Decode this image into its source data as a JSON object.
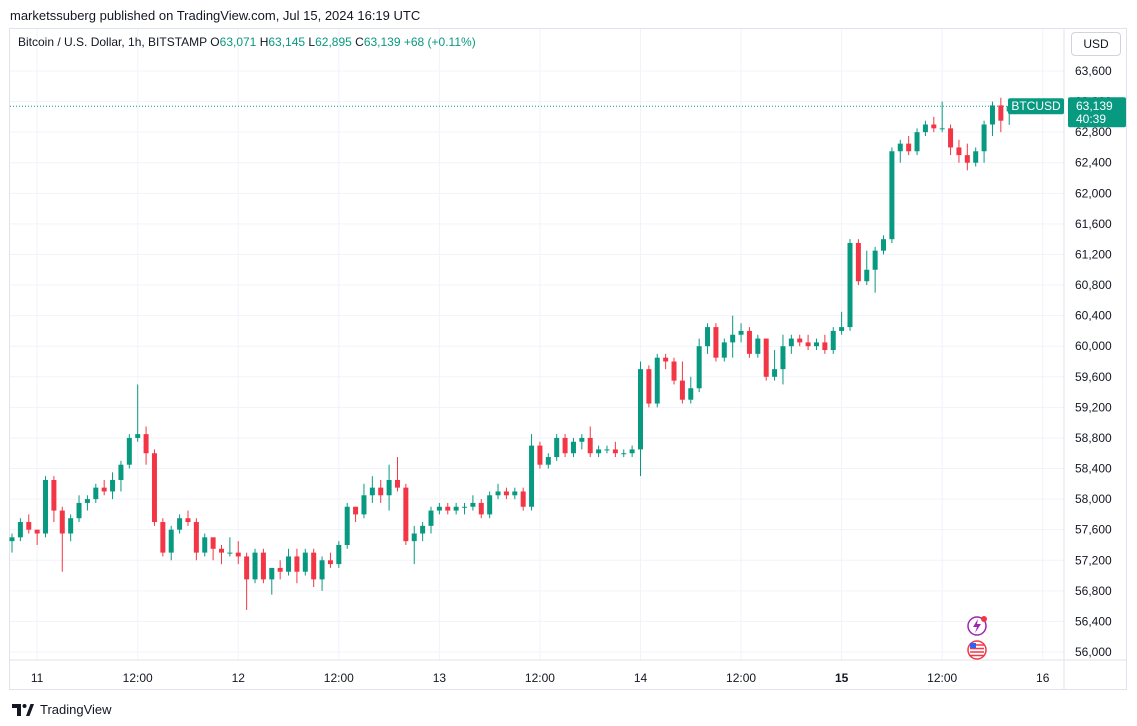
{
  "header": {
    "publisher_line": "marketssuberg published on TradingView.com, Jul 15, 2024 16:19 UTC"
  },
  "legend": {
    "symbol": "Bitcoin / U.S. Dollar, 1h, BITSTAMP",
    "o_label": "O",
    "o_value": "63,071",
    "h_label": "H",
    "h_value": "63,145",
    "l_label": "L",
    "l_value": "62,895",
    "c_label": "C",
    "c_value": "63,139",
    "change": "+68 (+0.11%)"
  },
  "currency_selector": "USD",
  "price_tag": {
    "symbol": "BTCUSD",
    "price": "63,139",
    "countdown": "40:39"
  },
  "footer": {
    "brand": "TradingView"
  },
  "colors": {
    "up": "#089981",
    "down": "#f23645",
    "grid": "#f0f3fa",
    "dotted": "#089981"
  },
  "chart_data": {
    "type": "candlestick",
    "title": "Bitcoin / U.S. Dollar, 1h, BITSTAMP",
    "ylim": [
      55800,
      63850
    ],
    "y_ticks": [
      {
        "value": 56000,
        "label": "56,000"
      },
      {
        "value": 56400,
        "label": "56,400"
      },
      {
        "value": 56800,
        "label": "56,800"
      },
      {
        "value": 57200,
        "label": "57,200"
      },
      {
        "value": 57600,
        "label": "57,600"
      },
      {
        "value": 58000,
        "label": "58,000"
      },
      {
        "value": 58400,
        "label": "58,400"
      },
      {
        "value": 58800,
        "label": "58,800"
      },
      {
        "value": 59200,
        "label": "59,200"
      },
      {
        "value": 59600,
        "label": "59,600"
      },
      {
        "value": 60000,
        "label": "60,000"
      },
      {
        "value": 60400,
        "label": "60,400"
      },
      {
        "value": 60800,
        "label": "60,800"
      },
      {
        "value": 61200,
        "label": "61,200"
      },
      {
        "value": 61600,
        "label": "61,600"
      },
      {
        "value": 62000,
        "label": "62,000"
      },
      {
        "value": 62400,
        "label": "62,400"
      },
      {
        "value": 62800,
        "label": "62,800"
      },
      {
        "value": 63200,
        "label": "63,200"
      },
      {
        "value": 63600,
        "label": "63,600"
      }
    ],
    "x_ticks": [
      {
        "index": 3,
        "label": "11",
        "bold": false
      },
      {
        "index": 15,
        "label": "12:00",
        "bold": false
      },
      {
        "index": 27,
        "label": "12",
        "bold": false
      },
      {
        "index": 39,
        "label": "12:00",
        "bold": false
      },
      {
        "index": 51,
        "label": "13",
        "bold": false
      },
      {
        "index": 63,
        "label": "12:00",
        "bold": false
      },
      {
        "index": 75,
        "label": "14",
        "bold": false
      },
      {
        "index": 87,
        "label": "12:00",
        "bold": false
      },
      {
        "index": 99,
        "label": "15",
        "bold": true
      },
      {
        "index": 111,
        "label": "12:00",
        "bold": false
      },
      {
        "index": 123,
        "label": "16",
        "bold": false
      }
    ],
    "last_price": 63139,
    "candles": [
      {
        "o": 57450,
        "h": 57550,
        "l": 57300,
        "c": 57500
      },
      {
        "o": 57500,
        "h": 57750,
        "l": 57450,
        "c": 57700
      },
      {
        "o": 57700,
        "h": 57800,
        "l": 57550,
        "c": 57600
      },
      {
        "o": 57600,
        "h": 57600,
        "l": 57400,
        "c": 57550
      },
      {
        "o": 57550,
        "h": 58300,
        "l": 57500,
        "c": 58250
      },
      {
        "o": 58250,
        "h": 58300,
        "l": 57700,
        "c": 57850
      },
      {
        "o": 57850,
        "h": 57900,
        "l": 57050,
        "c": 57550
      },
      {
        "o": 57550,
        "h": 57800,
        "l": 57450,
        "c": 57750
      },
      {
        "o": 57750,
        "h": 58050,
        "l": 57700,
        "c": 57950
      },
      {
        "o": 57950,
        "h": 58050,
        "l": 57850,
        "c": 58000
      },
      {
        "o": 58000,
        "h": 58200,
        "l": 57950,
        "c": 58150
      },
      {
        "o": 58150,
        "h": 58250,
        "l": 58050,
        "c": 58100
      },
      {
        "o": 58100,
        "h": 58350,
        "l": 58000,
        "c": 58250
      },
      {
        "o": 58250,
        "h": 58500,
        "l": 58100,
        "c": 58450
      },
      {
        "o": 58450,
        "h": 58850,
        "l": 58400,
        "c": 58800
      },
      {
        "o": 58800,
        "h": 59500,
        "l": 58750,
        "c": 58850
      },
      {
        "o": 58850,
        "h": 58950,
        "l": 58450,
        "c": 58600
      },
      {
        "o": 58600,
        "h": 58650,
        "l": 57650,
        "c": 57700
      },
      {
        "o": 57700,
        "h": 57750,
        "l": 57250,
        "c": 57300
      },
      {
        "o": 57300,
        "h": 57650,
        "l": 57200,
        "c": 57600
      },
      {
        "o": 57600,
        "h": 57800,
        "l": 57550,
        "c": 57750
      },
      {
        "o": 57750,
        "h": 57850,
        "l": 57650,
        "c": 57700
      },
      {
        "o": 57700,
        "h": 57750,
        "l": 57200,
        "c": 57300
      },
      {
        "o": 57300,
        "h": 57550,
        "l": 57250,
        "c": 57500
      },
      {
        "o": 57500,
        "h": 57500,
        "l": 57200,
        "c": 57350
      },
      {
        "o": 57350,
        "h": 57400,
        "l": 57150,
        "c": 57300
      },
      {
        "o": 57300,
        "h": 57500,
        "l": 57250,
        "c": 57300
      },
      {
        "o": 57300,
        "h": 57450,
        "l": 57150,
        "c": 57250
      },
      {
        "o": 57250,
        "h": 57300,
        "l": 56550,
        "c": 56950
      },
      {
        "o": 56950,
        "h": 57350,
        "l": 56900,
        "c": 57300
      },
      {
        "o": 57300,
        "h": 57350,
        "l": 56900,
        "c": 56950
      },
      {
        "o": 56950,
        "h": 57100,
        "l": 56750,
        "c": 57100
      },
      {
        "o": 57100,
        "h": 57200,
        "l": 56950,
        "c": 57050
      },
      {
        "o": 57050,
        "h": 57350,
        "l": 57000,
        "c": 57250
      },
      {
        "o": 57250,
        "h": 57350,
        "l": 56900,
        "c": 57050
      },
      {
        "o": 57050,
        "h": 57350,
        "l": 57000,
        "c": 57300
      },
      {
        "o": 57300,
        "h": 57350,
        "l": 56850,
        "c": 56950
      },
      {
        "o": 56950,
        "h": 57250,
        "l": 56800,
        "c": 57200
      },
      {
        "o": 57200,
        "h": 57300,
        "l": 57100,
        "c": 57150
      },
      {
        "o": 57150,
        "h": 57450,
        "l": 57100,
        "c": 57400
      },
      {
        "o": 57400,
        "h": 57950,
        "l": 57350,
        "c": 57900
      },
      {
        "o": 57900,
        "h": 57900,
        "l": 57700,
        "c": 57800
      },
      {
        "o": 57800,
        "h": 58200,
        "l": 57750,
        "c": 58050
      },
      {
        "o": 58050,
        "h": 58300,
        "l": 57950,
        "c": 58150
      },
      {
        "o": 58150,
        "h": 58250,
        "l": 57950,
        "c": 58050
      },
      {
        "o": 58050,
        "h": 58450,
        "l": 57850,
        "c": 58250
      },
      {
        "o": 58250,
        "h": 58550,
        "l": 58100,
        "c": 58150
      },
      {
        "o": 58150,
        "h": 58200,
        "l": 57400,
        "c": 57450
      },
      {
        "o": 57450,
        "h": 57650,
        "l": 57150,
        "c": 57550
      },
      {
        "o": 57550,
        "h": 57700,
        "l": 57450,
        "c": 57650
      },
      {
        "o": 57650,
        "h": 57900,
        "l": 57550,
        "c": 57850
      },
      {
        "o": 57850,
        "h": 57950,
        "l": 57800,
        "c": 57900
      },
      {
        "o": 57900,
        "h": 57950,
        "l": 57800,
        "c": 57850
      },
      {
        "o": 57850,
        "h": 57950,
        "l": 57800,
        "c": 57900
      },
      {
        "o": 57900,
        "h": 57950,
        "l": 57800,
        "c": 57900
      },
      {
        "o": 57900,
        "h": 58050,
        "l": 57850,
        "c": 57950
      },
      {
        "o": 57950,
        "h": 58000,
        "l": 57750,
        "c": 57800
      },
      {
        "o": 57800,
        "h": 58100,
        "l": 57750,
        "c": 58050
      },
      {
        "o": 58050,
        "h": 58200,
        "l": 58000,
        "c": 58100
      },
      {
        "o": 58100,
        "h": 58150,
        "l": 58000,
        "c": 58050
      },
      {
        "o": 58050,
        "h": 58150,
        "l": 58000,
        "c": 58100
      },
      {
        "o": 58100,
        "h": 58150,
        "l": 57850,
        "c": 57900
      },
      {
        "o": 57900,
        "h": 58850,
        "l": 57850,
        "c": 58700
      },
      {
        "o": 58700,
        "h": 58750,
        "l": 58400,
        "c": 58450
      },
      {
        "o": 58450,
        "h": 58600,
        "l": 58400,
        "c": 58550
      },
      {
        "o": 58550,
        "h": 58850,
        "l": 58500,
        "c": 58800
      },
      {
        "o": 58800,
        "h": 58850,
        "l": 58550,
        "c": 58600
      },
      {
        "o": 58600,
        "h": 58800,
        "l": 58550,
        "c": 58750
      },
      {
        "o": 58750,
        "h": 58850,
        "l": 58650,
        "c": 58800
      },
      {
        "o": 58800,
        "h": 58950,
        "l": 58550,
        "c": 58600
      },
      {
        "o": 58600,
        "h": 58700,
        "l": 58550,
        "c": 58650
      },
      {
        "o": 58650,
        "h": 58700,
        "l": 58600,
        "c": 58650
      },
      {
        "o": 58650,
        "h": 58750,
        "l": 58550,
        "c": 58600
      },
      {
        "o": 58600,
        "h": 58650,
        "l": 58550,
        "c": 58600
      },
      {
        "o": 58600,
        "h": 58700,
        "l": 58550,
        "c": 58650
      },
      {
        "o": 58650,
        "h": 59800,
        "l": 58300,
        "c": 59700
      },
      {
        "o": 59700,
        "h": 59750,
        "l": 59200,
        "c": 59250
      },
      {
        "o": 59250,
        "h": 59900,
        "l": 59200,
        "c": 59850
      },
      {
        "o": 59850,
        "h": 59900,
        "l": 59700,
        "c": 59800
      },
      {
        "o": 59800,
        "h": 59850,
        "l": 59500,
        "c": 59550
      },
      {
        "o": 59550,
        "h": 59800,
        "l": 59250,
        "c": 59300
      },
      {
        "o": 59300,
        "h": 59600,
        "l": 59250,
        "c": 59450
      },
      {
        "o": 59450,
        "h": 60100,
        "l": 59400,
        "c": 60000
      },
      {
        "o": 60000,
        "h": 60300,
        "l": 59900,
        "c": 60250
      },
      {
        "o": 60250,
        "h": 60300,
        "l": 59800,
        "c": 59850
      },
      {
        "o": 59850,
        "h": 60100,
        "l": 59800,
        "c": 60050
      },
      {
        "o": 60050,
        "h": 60400,
        "l": 59850,
        "c": 60150
      },
      {
        "o": 60150,
        "h": 60300,
        "l": 60050,
        "c": 60200
      },
      {
        "o": 60200,
        "h": 60250,
        "l": 59850,
        "c": 59900
      },
      {
        "o": 59900,
        "h": 60150,
        "l": 59850,
        "c": 60100
      },
      {
        "o": 60100,
        "h": 60100,
        "l": 59550,
        "c": 59600
      },
      {
        "o": 59600,
        "h": 59950,
        "l": 59550,
        "c": 59700
      },
      {
        "o": 59700,
        "h": 60150,
        "l": 59500,
        "c": 60000
      },
      {
        "o": 60000,
        "h": 60150,
        "l": 59900,
        "c": 60100
      },
      {
        "o": 60100,
        "h": 60150,
        "l": 60000,
        "c": 60050
      },
      {
        "o": 60050,
        "h": 60150,
        "l": 59950,
        "c": 60000
      },
      {
        "o": 60000,
        "h": 60100,
        "l": 59950,
        "c": 60050
      },
      {
        "o": 60050,
        "h": 60150,
        "l": 59900,
        "c": 59950
      },
      {
        "o": 59950,
        "h": 60250,
        "l": 59900,
        "c": 60200
      },
      {
        "o": 60200,
        "h": 60450,
        "l": 60150,
        "c": 60250
      },
      {
        "o": 60250,
        "h": 61400,
        "l": 60200,
        "c": 61350
      },
      {
        "o": 61350,
        "h": 61400,
        "l": 60800,
        "c": 60850
      },
      {
        "o": 60850,
        "h": 61250,
        "l": 60800,
        "c": 61000
      },
      {
        "o": 61000,
        "h": 61300,
        "l": 60700,
        "c": 61250
      },
      {
        "o": 61250,
        "h": 61450,
        "l": 61200,
        "c": 61400
      },
      {
        "o": 61400,
        "h": 62600,
        "l": 61350,
        "c": 62550
      },
      {
        "o": 62550,
        "h": 62700,
        "l": 62400,
        "c": 62650
      },
      {
        "o": 62650,
        "h": 62750,
        "l": 62500,
        "c": 62550
      },
      {
        "o": 62550,
        "h": 62850,
        "l": 62500,
        "c": 62800
      },
      {
        "o": 62800,
        "h": 62950,
        "l": 62750,
        "c": 62900
      },
      {
        "o": 62900,
        "h": 63000,
        "l": 62800,
        "c": 62850
      },
      {
        "o": 62850,
        "h": 63200,
        "l": 62800,
        "c": 62850
      },
      {
        "o": 62850,
        "h": 62900,
        "l": 62500,
        "c": 62600
      },
      {
        "o": 62600,
        "h": 62700,
        "l": 62400,
        "c": 62500
      },
      {
        "o": 62500,
        "h": 62650,
        "l": 62300,
        "c": 62400
      },
      {
        "o": 62400,
        "h": 62600,
        "l": 62350,
        "c": 62550
      },
      {
        "o": 62550,
        "h": 62950,
        "l": 62400,
        "c": 62900
      },
      {
        "o": 62900,
        "h": 63200,
        "l": 62750,
        "c": 63150
      },
      {
        "o": 63150,
        "h": 63250,
        "l": 62800,
        "c": 62950
      },
      {
        "o": 63071,
        "h": 63145,
        "l": 62895,
        "c": 63139
      }
    ]
  }
}
